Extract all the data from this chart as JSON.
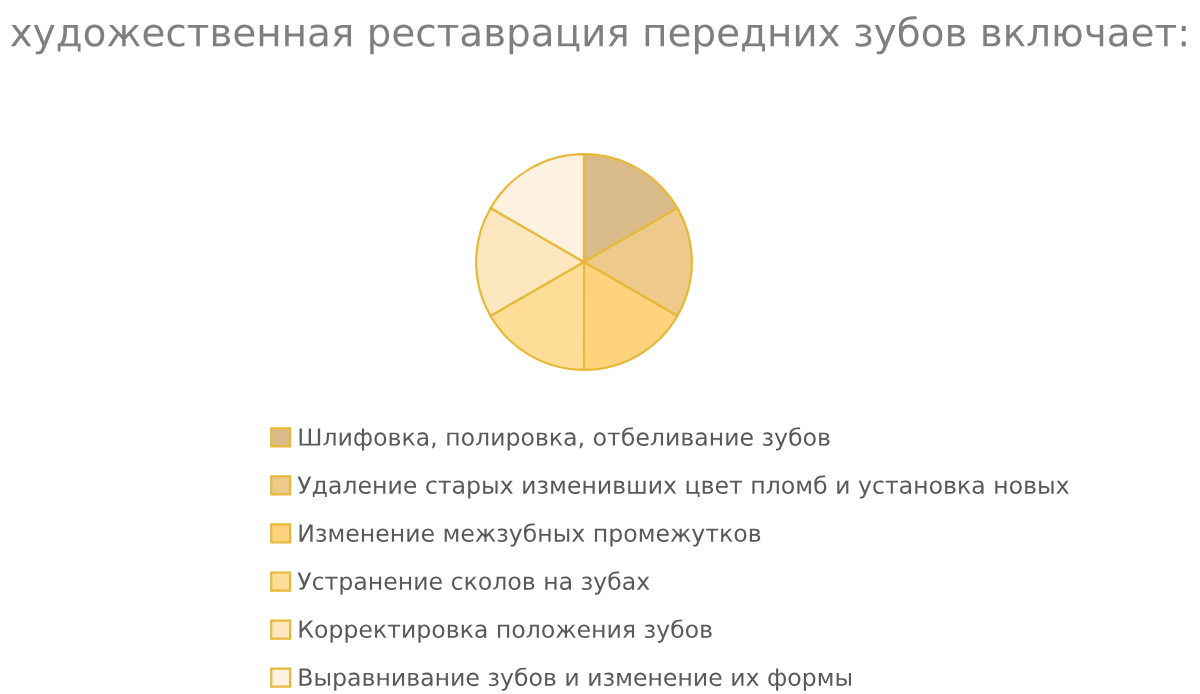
{
  "chart_data": {
    "type": "pie",
    "title": "художественная реставрация передних зубов включает:",
    "categories": [
      "Шлифовка, полировка, отбеливание зубов",
      "Удаление старых изменивших цвет пломб и установка новых",
      "Изменение межзубных промежутков",
      "Устранение сколов на зубах",
      "Корректировка положения зубов",
      "Выравнивание зубов и изменение их формы"
    ],
    "values": [
      16.67,
      16.67,
      16.67,
      16.67,
      16.66,
      16.66
    ],
    "colors": [
      "#d9bb8a",
      "#edc98c",
      "#fdd37e",
      "#fedd97",
      "#fde7be",
      "#fdf1df"
    ],
    "legend": "bottom"
  }
}
